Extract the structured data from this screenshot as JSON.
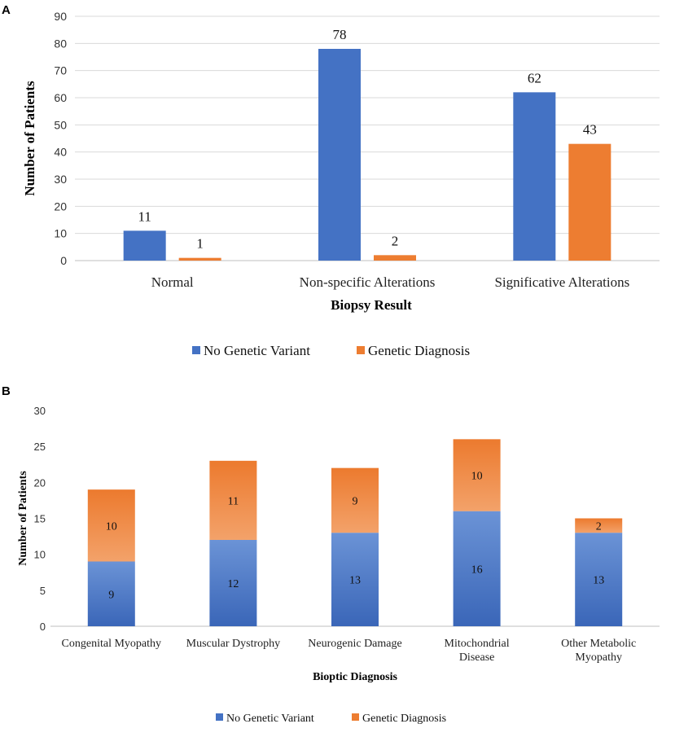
{
  "panels": {
    "a": {
      "label": "A"
    },
    "b": {
      "label": "B"
    }
  },
  "colors": {
    "blue": "#4472c4",
    "orange": "#ed7d31",
    "grid": "#d9d9d9"
  },
  "chart_data": [
    {
      "type": "bar",
      "panel": "A",
      "title": "",
      "categories": [
        "Normal",
        "Non-specific Alterations",
        "Significative Alterations"
      ],
      "series": [
        {
          "name": "No Genetic Variant",
          "values": [
            11,
            78,
            62
          ],
          "color": "#4472c4"
        },
        {
          "name": "Genetic Diagnosis",
          "values": [
            1,
            2,
            43
          ],
          "color": "#ed7d31"
        }
      ],
      "xlabel": "Biopsy Result",
      "ylabel": "Number  of Patients",
      "ylim": [
        0,
        90
      ],
      "yticks": [
        "0",
        "10",
        "20",
        "30",
        "40",
        "50",
        "60",
        "70",
        "80",
        "90"
      ],
      "grid": true,
      "legend": "bottom"
    },
    {
      "type": "stacked-bar",
      "panel": "B",
      "title": "",
      "categories": [
        [
          "Congenital Myopathy"
        ],
        [
          "Muscular Dystrophy"
        ],
        [
          "Neurogenic Damage"
        ],
        [
          "Mitochondrial",
          "Disease"
        ],
        [
          "Other Metabolic",
          "Myopathy"
        ]
      ],
      "series": [
        {
          "name": "No Genetic Variant",
          "values": [
            9,
            12,
            13,
            16,
            13
          ],
          "color": "#4472c4"
        },
        {
          "name": "Genetic Diagnosis",
          "values": [
            10,
            11,
            9,
            10,
            2
          ],
          "color": "#ed7d31"
        }
      ],
      "xlabel": "Bioptic Diagnosis",
      "ylabel": "Number  of Patients",
      "ylim": [
        0,
        30
      ],
      "yticks": [
        "0",
        "5",
        "10",
        "15",
        "20",
        "25",
        "30"
      ],
      "grid": false,
      "legend": "bottom"
    }
  ]
}
